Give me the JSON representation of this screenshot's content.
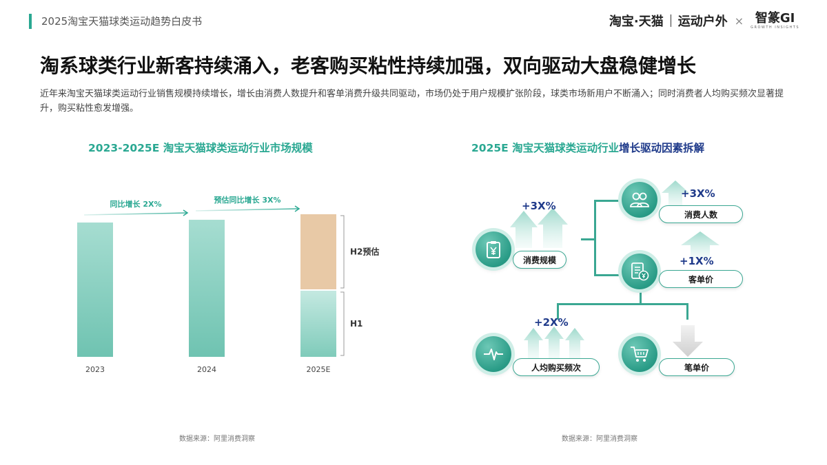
{
  "header": {
    "report_title": "2025淘宝天猫球类运动趋势白皮书",
    "brand_taobao": "淘宝·天猫",
    "brand_category": "运动户外",
    "brand_x": "×",
    "brand_partner": "智篆GI",
    "brand_partner_sub": "GROWTH INSIGHTS"
  },
  "page": {
    "title": "淘系球类行业新客持续涌入，老客购买粘性持续加强，双向驱动大盘稳健增长",
    "description": "近年来淘宝天猫球类运动行业销售规模持续增长，增长由消费人数提升和客单消费升级共同驱动，市场仍处于用户规模扩张阶段，球类市场新用户不断涌入；同时消费者人均购买频次显著提升，购买粘性愈发增强。"
  },
  "left_chart": {
    "title": "2023-2025E 淘宝天猫球类运动行业市场规模",
    "source": "数据来源：阿里消费洞察"
  },
  "chart_data": {
    "type": "bar",
    "categories": [
      "2023",
      "2024",
      "2025E"
    ],
    "series": [
      {
        "name": "H1",
        "values": [
          null,
          null,
          96
        ]
      },
      {
        "name": "H2预估",
        "values": [
          null,
          null,
          109
        ]
      }
    ],
    "totals": [
      195,
      199,
      205
    ],
    "annotations": [
      {
        "text": "同比增长 2X%",
        "from": "2023",
        "to": "2024"
      },
      {
        "text": "预估同比增长 3X%",
        "from": "2024",
        "to": "2025E"
      }
    ],
    "ylim": [
      0,
      215
    ],
    "colors": {
      "bar": "#8dd1c2",
      "h1": "#a8ddd1",
      "h2": "#e8c9a6",
      "accent": "#2aa892"
    }
  },
  "right_chart": {
    "title_part1": "2025E 淘宝天猫球类运动行业",
    "title_part2": "增长驱动因素拆解",
    "source": "数据来源：阿里消费洞察",
    "nodes": {
      "sales": {
        "label": "消费规模",
        "pct": "+3X%",
        "icon": "clipboard-yen-icon"
      },
      "buyers": {
        "label": "消费人数",
        "pct": "+3X%",
        "icon": "people-icon"
      },
      "aov": {
        "label": "客单价",
        "pct": "+1X%",
        "icon": "receipt-yen-icon"
      },
      "freq": {
        "label": "人均购买频次",
        "pct": "+2X%",
        "icon": "pulse-icon"
      },
      "price": {
        "label": "笔单价",
        "icon": "cart-icon"
      }
    }
  }
}
